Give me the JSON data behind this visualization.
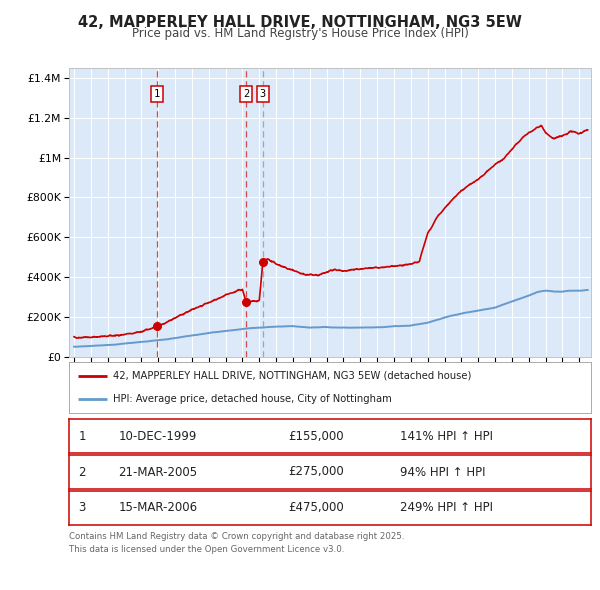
{
  "title": "42, MAPPERLEY HALL DRIVE, NOTTINGHAM, NG3 5EW",
  "subtitle": "Price paid vs. HM Land Registry's House Price Index (HPI)",
  "legend_line1": "42, MAPPERLEY HALL DRIVE, NOTTINGHAM, NG3 5EW (detached house)",
  "legend_line2": "HPI: Average price, detached house, City of Nottingham",
  "footnote1": "Contains HM Land Registry data © Crown copyright and database right 2025.",
  "footnote2": "This data is licensed under the Open Government Licence v3.0.",
  "transactions": [
    {
      "num": 1,
      "date": "10-DEC-1999",
      "year": 1999.94,
      "price": 155000,
      "hpi_pct": "141%↑ HPI"
    },
    {
      "num": 2,
      "date": "21-MAR-2005",
      "year": 2005.22,
      "price": 275000,
      "hpi_pct": "94%↑ HPI"
    },
    {
      "num": 3,
      "date": "15-MAR-2006",
      "year": 2006.21,
      "price": 475000,
      "hpi_pct": "249%↑ HPI"
    }
  ],
  "ylim": [
    0,
    1450000
  ],
  "xlim_start": 1994.7,
  "xlim_end": 2025.7,
  "background_color": "#dce9f8",
  "grid_color": "#ffffff",
  "red_line_color": "#cc0000",
  "blue_line_color": "#6699cc",
  "title_fontsize": 10.5,
  "subtitle_fontsize": 8.5
}
